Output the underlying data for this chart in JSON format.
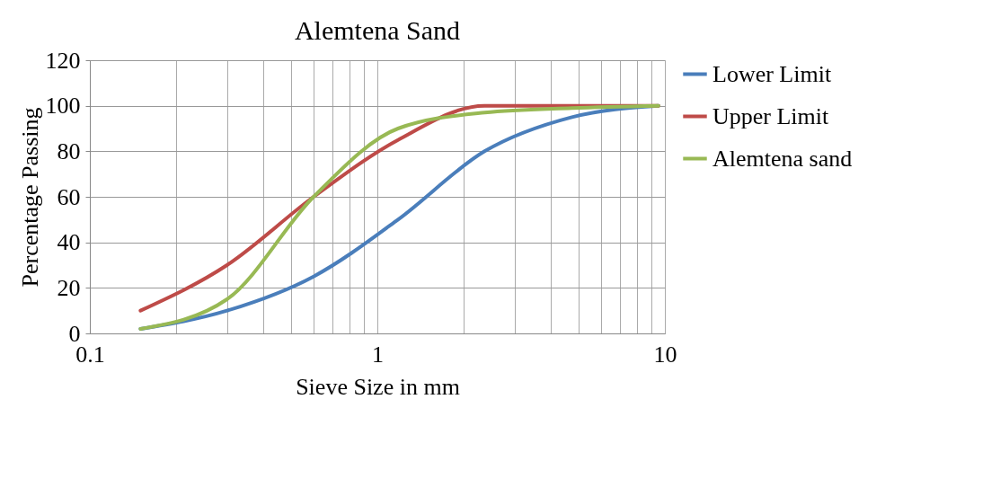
{
  "chart_data": {
    "type": "line",
    "title": "Alemtena Sand",
    "xlabel": "Sieve Size in mm",
    "ylabel": "Percentage  Passing",
    "x": [
      0.15,
      0.3,
      0.6,
      1.18,
      2.36,
      4.75,
      9.5
    ],
    "series": [
      {
        "name": "Lower Limit",
        "color": "#4a7ebb",
        "values": [
          2,
          10,
          25,
          50,
          80,
          95,
          100
        ]
      },
      {
        "name": "Upper Limit",
        "color": "#be4b48",
        "values": [
          10,
          30,
          60,
          85,
          100,
          100,
          100
        ]
      },
      {
        "name": "Alemtena sand",
        "color": "#98b954",
        "values": [
          2,
          15,
          60,
          90,
          97,
          99,
          100
        ]
      }
    ],
    "log": "x",
    "xlim": [
      0.1,
      10
    ],
    "ylim": [
      0,
      120
    ],
    "xticks": [
      0.1,
      {
        "value": 0.2,
        "label": null
      },
      {
        "value": 0.3,
        "label": null
      },
      {
        "value": 0.4,
        "label": null
      },
      {
        "value": 0.5,
        "label": null
      },
      {
        "value": 0.6,
        "label": null
      },
      {
        "value": 0.7,
        "label": null
      },
      {
        "value": 0.8,
        "label": null
      },
      {
        "value": 0.9,
        "label": null
      },
      1,
      {
        "value": 2,
        "label": null
      },
      {
        "value": 3,
        "label": null
      },
      {
        "value": 4,
        "label": null
      },
      {
        "value": 5,
        "label": null
      },
      {
        "value": 6,
        "label": null
      },
      {
        "value": 7,
        "label": null
      },
      {
        "value": 8,
        "label": null
      },
      {
        "value": 9,
        "label": null
      },
      10
    ],
    "yticks": [
      0,
      20,
      40,
      60,
      80,
      100,
      120
    ],
    "grid": true,
    "legend": "right",
    "marker": "none",
    "line_style": "solid"
  }
}
